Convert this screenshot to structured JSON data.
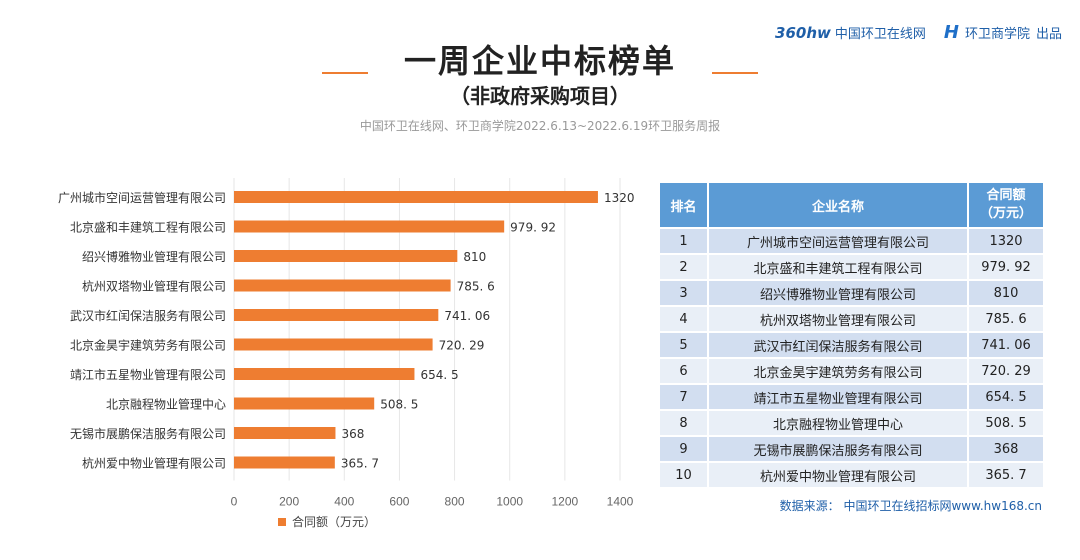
{
  "brand": {
    "logo_text": "360hw",
    "site1": "中国环卫在线网",
    "logo2_text": "H",
    "site2": "环卫商学院",
    "by": "出品"
  },
  "title": "一周企业中标榜单",
  "subtitle": "（非政府采购项目）",
  "source_line": "中国环卫在线网、环卫商学院2022.6.13~2022.6.19环卫服务周报",
  "chart_data": {
    "type": "bar",
    "orientation": "horizontal",
    "categories": [
      "广州城市空间运营管理有限公司",
      "北京盛和丰建筑工程有限公司",
      "绍兴博雅物业管理有限公司",
      "杭州双塔物业管理有限公司",
      "武汉市红闰保洁服务有限公司",
      "北京金昊宇建筑劳务有限公司",
      "靖江市五星物业管理有限公司",
      "北京融程物业管理中心",
      "无锡市展鹏保洁服务有限公司",
      "杭州爱中物业管理有限公司"
    ],
    "values": [
      1320,
      979.92,
      810,
      785.6,
      741.06,
      720.29,
      654.5,
      508.5,
      368,
      365.7
    ],
    "value_labels": [
      "1320",
      "979. 92",
      "810",
      "785. 6",
      "741. 06",
      "720. 29",
      "654. 5",
      "508. 5",
      "368",
      "365. 7"
    ],
    "xlim": [
      0,
      1400
    ],
    "xticks": [
      "0",
      "200",
      "400",
      "600",
      "800",
      "1000",
      "1200",
      "1400"
    ],
    "legend": "合同额（万元）",
    "legend_position": "bottom",
    "color": "#ee7d31"
  },
  "table": {
    "headers": [
      "排名",
      "企业名称",
      "合同额（万元）"
    ],
    "rows": [
      {
        "rank": "1",
        "name": "广州城市空间运营管理有限公司",
        "amount": "1320"
      },
      {
        "rank": "2",
        "name": "北京盛和丰建筑工程有限公司",
        "amount": "979. 92"
      },
      {
        "rank": "3",
        "name": "绍兴博雅物业管理有限公司",
        "amount": "810"
      },
      {
        "rank": "4",
        "name": "杭州双塔物业管理有限公司",
        "amount": "785. 6"
      },
      {
        "rank": "5",
        "name": "武汉市红闰保洁服务有限公司",
        "amount": "741. 06"
      },
      {
        "rank": "6",
        "name": "北京金昊宇建筑劳务有限公司",
        "amount": "720. 29"
      },
      {
        "rank": "7",
        "name": "靖江市五星物业管理有限公司",
        "amount": "654. 5"
      },
      {
        "rank": "8",
        "name": "北京融程物业管理中心",
        "amount": "508. 5"
      },
      {
        "rank": "9",
        "name": "无锡市展鹏保洁服务有限公司",
        "amount": "368"
      },
      {
        "rank": "10",
        "name": "杭州爱中物业管理有限公司",
        "amount": "365. 7"
      }
    ]
  },
  "footnote": "数据来源： 中国环卫在线招标网www.hw168.cn"
}
